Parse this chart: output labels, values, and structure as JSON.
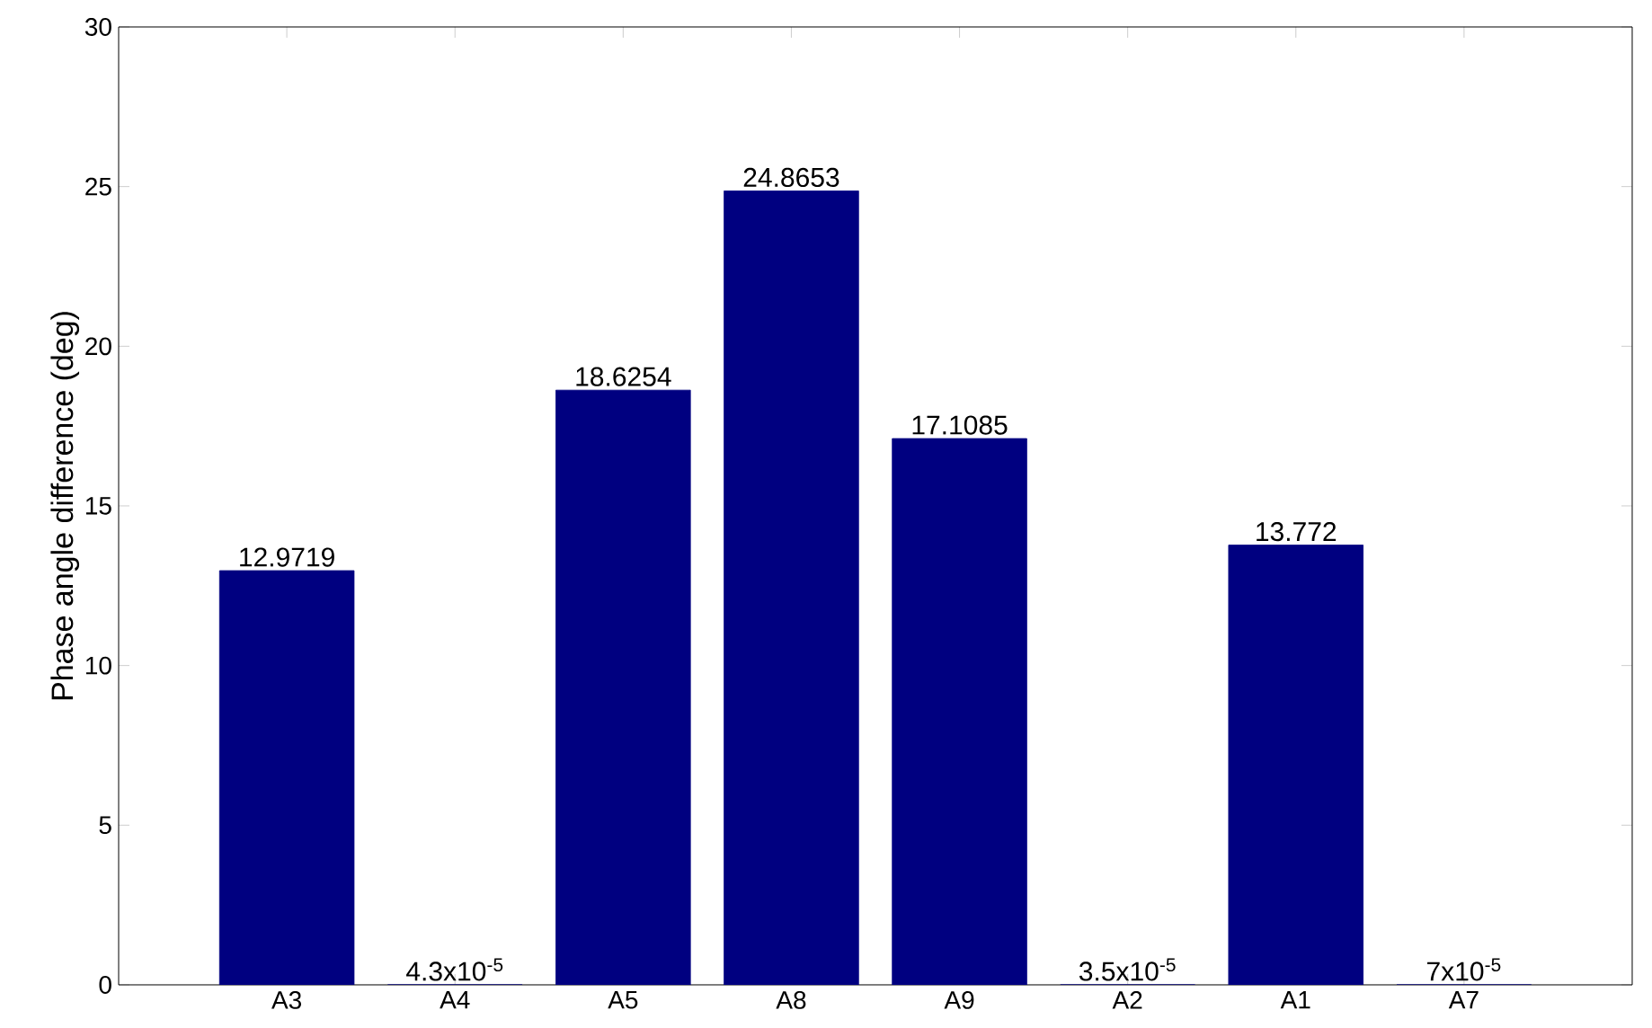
{
  "chart_data": {
    "type": "bar",
    "ylabel": "Phase angle difference (deg)",
    "categories": [
      "A3",
      "A4",
      "A5",
      "A8",
      "A9",
      "A2",
      "A1",
      "A7"
    ],
    "values": [
      12.9719,
      4.3e-05,
      18.6254,
      24.8653,
      17.1085,
      3.5e-05,
      13.772,
      7e-05
    ],
    "value_labels": [
      "12.9719",
      "4.3x10$^{-5}$",
      "18.6254",
      "24.8653",
      "17.1085",
      "3.5x10$^{-5}$",
      "13.772",
      "7x10$^{-5}$"
    ],
    "color": "#000080",
    "ylim": [
      0,
      30
    ],
    "yticks": [
      0,
      5,
      10,
      15,
      20,
      25,
      30
    ]
  }
}
